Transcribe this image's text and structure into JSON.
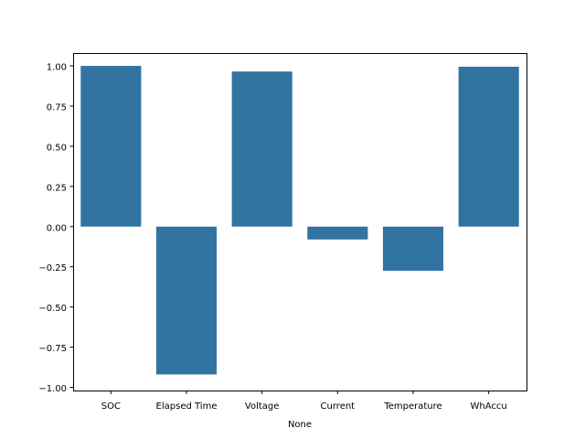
{
  "chart_data": {
    "type": "bar",
    "title": "",
    "xlabel": "None",
    "ylabel": "",
    "categories": [
      "SOC",
      "Elapsed Time",
      "Voltage",
      "Current",
      "Temperature",
      "WhAccu"
    ],
    "values": [
      1.0,
      -0.92,
      0.965,
      -0.08,
      -0.275,
      0.995
    ],
    "ylim": [
      -1.02,
      1.08
    ],
    "yticks": [
      1.0,
      0.75,
      0.5,
      0.25,
      0.0,
      -0.25,
      -0.5,
      -0.75,
      -1.0
    ],
    "ytick_labels": [
      "1.00",
      "0.75",
      "0.50",
      "0.25",
      "0.00",
      "−0.25",
      "−0.50",
      "−0.75",
      "−1.00"
    ],
    "bar_color": "#3274a1",
    "grid": false,
    "legend": "none"
  }
}
